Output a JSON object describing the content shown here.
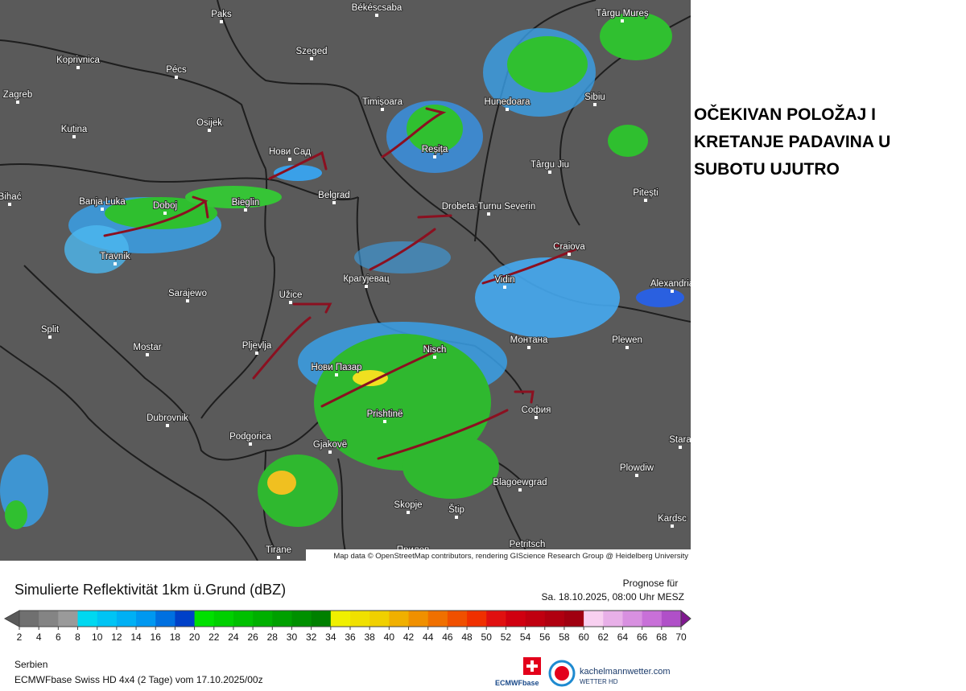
{
  "map": {
    "cities": [
      "Paks",
      "Békéscsaba",
      "Târgu Mureș",
      "Koprivnica",
      "Pécs",
      "Szeged",
      "Zagreb",
      "Timișoara",
      "Hunedoara",
      "Sibiu",
      "Osijek",
      "Kutina",
      "Нови Сад",
      "Reșița",
      "Târgu Jiu",
      "Belgrad",
      "Drobeta-Turnu Severin",
      "Pitești",
      "Banja Luka",
      "Doboj",
      "Bieglin",
      "Bihać",
      "Travnik",
      "Craiova",
      "Alexandria",
      "Крагујевац",
      "Vidin",
      "Sarajewo",
      "Užice",
      "Split",
      "Mostar",
      "Pljevlja",
      "Монтана",
      "Plewen",
      "Nisch",
      "Нови Пазар",
      "Dubrovnik",
      "София",
      "Prishtinë",
      "Podgorica",
      "Gjakovë",
      "Stara",
      "Plowdiw",
      "Blagoewgrad",
      "Skopje",
      "Štip",
      "Kardsc",
      "Petritsch",
      "Tirane",
      "Прилеп"
    ],
    "attribution": "Map data © OpenStreetMap contributors, rendering GIScience Research Group @ Heidelberg University"
  },
  "annotation": "OČEKIVAN POLOŽAJ I KRETANJE PADAVINA U SUBOTU UJUTRO",
  "legend": {
    "title": "Simulierte Reflektivität 1km ü.Grund (dBZ)",
    "forecast_label": "Prognose für",
    "forecast_time": "Sa. 18.10.2025, 08:00 Uhr MESZ",
    "ticks": [
      2,
      4,
      6,
      8,
      10,
      12,
      14,
      16,
      18,
      20,
      22,
      24,
      26,
      28,
      30,
      32,
      34,
      36,
      38,
      40,
      42,
      44,
      46,
      48,
      50,
      52,
      54,
      56,
      58,
      60,
      62,
      64,
      66,
      68,
      70
    ]
  },
  "footer": {
    "region": "Serbien",
    "model": "ECMWFbase Swiss HD 4x4 (2 Tage) vom 17.10.2025/00z",
    "logo_left": "ECMWFbase",
    "logo_right": "kachelmannwetter.com",
    "logo_right_sub": "WETTER HD"
  }
}
